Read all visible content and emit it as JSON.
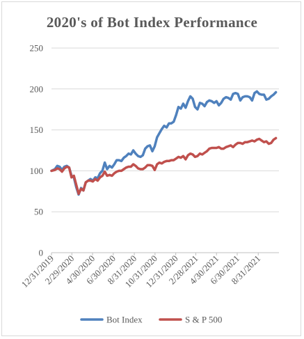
{
  "chart_data": {
    "type": "line",
    "title": "2020's of Bot Index Performance",
    "xlabel": "",
    "ylabel": "",
    "ylim": [
      0,
      250
    ],
    "y_ticks": [
      0,
      50,
      100,
      150,
      200,
      250
    ],
    "grid": true,
    "legend_position": "bottom",
    "x_tick_labels": [
      "12/31/2019",
      "2/29/2020",
      "4/30/2020",
      "6/30/2020",
      "8/31/2020",
      "10/31/2020",
      "12/31/2020",
      "2/28/2021",
      "4/30/2021",
      "6/30/2021",
      "8/31/2021"
    ],
    "x_tick_dates": [
      "2019-12-31",
      "2020-02-29",
      "2020-04-30",
      "2020-06-30",
      "2020-08-31",
      "2020-10-31",
      "2020-12-31",
      "2021-02-28",
      "2021-04-30",
      "2021-06-30",
      "2021-08-31"
    ],
    "x_range": [
      "2019-12-31",
      "2021-10-31"
    ],
    "series": [
      {
        "name": "Bot Index",
        "color": "#4f81bd",
        "points": [
          [
            "2019-12-31",
            100
          ],
          [
            "2020-01-10",
            102
          ],
          [
            "2020-01-17",
            106
          ],
          [
            "2020-01-24",
            105
          ],
          [
            "2020-01-31",
            101
          ],
          [
            "2020-02-07",
            105
          ],
          [
            "2020-02-14",
            106
          ],
          [
            "2020-02-21",
            104
          ],
          [
            "2020-02-28",
            94
          ],
          [
            "2020-03-06",
            92
          ],
          [
            "2020-03-13",
            80
          ],
          [
            "2020-03-20",
            71
          ],
          [
            "2020-03-27",
            79
          ],
          [
            "2020-04-03",
            76
          ],
          [
            "2020-04-10",
            86
          ],
          [
            "2020-04-17",
            88
          ],
          [
            "2020-04-24",
            90
          ],
          [
            "2020-05-01",
            88
          ],
          [
            "2020-05-08",
            92
          ],
          [
            "2020-05-15",
            91
          ],
          [
            "2020-05-22",
            97
          ],
          [
            "2020-05-29",
            100
          ],
          [
            "2020-06-05",
            110
          ],
          [
            "2020-06-12",
            102
          ],
          [
            "2020-06-19",
            106
          ],
          [
            "2020-06-26",
            104
          ],
          [
            "2020-07-03",
            108
          ],
          [
            "2020-07-10",
            113
          ],
          [
            "2020-07-17",
            113
          ],
          [
            "2020-07-24",
            112
          ],
          [
            "2020-07-31",
            116
          ],
          [
            "2020-08-07",
            118
          ],
          [
            "2020-08-14",
            121
          ],
          [
            "2020-08-21",
            120
          ],
          [
            "2020-08-28",
            125
          ],
          [
            "2020-09-04",
            121
          ],
          [
            "2020-09-11",
            118
          ],
          [
            "2020-09-18",
            117
          ],
          [
            "2020-09-25",
            119
          ],
          [
            "2020-10-02",
            127
          ],
          [
            "2020-10-09",
            130
          ],
          [
            "2020-10-16",
            131
          ],
          [
            "2020-10-23",
            124
          ],
          [
            "2020-10-30",
            130
          ],
          [
            "2020-11-06",
            141
          ],
          [
            "2020-11-13",
            146
          ],
          [
            "2020-11-20",
            151
          ],
          [
            "2020-11-27",
            155
          ],
          [
            "2020-12-04",
            153
          ],
          [
            "2020-12-11",
            158
          ],
          [
            "2020-12-18",
            158
          ],
          [
            "2020-12-25",
            160
          ],
          [
            "2021-01-01",
            168
          ],
          [
            "2021-01-08",
            178
          ],
          [
            "2021-01-15",
            176
          ],
          [
            "2021-01-22",
            182
          ],
          [
            "2021-01-29",
            177
          ],
          [
            "2021-02-05",
            185
          ],
          [
            "2021-02-12",
            191
          ],
          [
            "2021-02-19",
            188
          ],
          [
            "2021-02-26",
            178
          ],
          [
            "2021-03-05",
            175
          ],
          [
            "2021-03-12",
            183
          ],
          [
            "2021-03-19",
            182
          ],
          [
            "2021-03-26",
            179
          ],
          [
            "2021-04-02",
            184
          ],
          [
            "2021-04-09",
            186
          ],
          [
            "2021-04-16",
            185
          ],
          [
            "2021-04-23",
            183
          ],
          [
            "2021-04-30",
            185
          ],
          [
            "2021-05-07",
            180
          ],
          [
            "2021-05-14",
            183
          ],
          [
            "2021-05-21",
            188
          ],
          [
            "2021-05-28",
            190
          ],
          [
            "2021-06-04",
            189
          ],
          [
            "2021-06-11",
            187
          ],
          [
            "2021-06-18",
            194
          ],
          [
            "2021-06-25",
            195
          ],
          [
            "2021-07-02",
            194
          ],
          [
            "2021-07-09",
            186
          ],
          [
            "2021-07-16",
            190
          ],
          [
            "2021-07-23",
            191
          ],
          [
            "2021-07-30",
            191
          ],
          [
            "2021-08-06",
            190
          ],
          [
            "2021-08-13",
            186
          ],
          [
            "2021-08-20",
            195
          ],
          [
            "2021-08-27",
            197
          ],
          [
            "2021-09-03",
            194
          ],
          [
            "2021-09-10",
            193
          ],
          [
            "2021-09-17",
            193
          ],
          [
            "2021-09-24",
            187
          ],
          [
            "2021-10-01",
            188
          ],
          [
            "2021-10-08",
            191
          ],
          [
            "2021-10-15",
            193
          ],
          [
            "2021-10-22",
            196
          ]
        ]
      },
      {
        "name": "S & P 500",
        "color": "#c0504d",
        "points": [
          [
            "2019-12-31",
            100
          ],
          [
            "2020-01-10",
            101
          ],
          [
            "2020-01-17",
            103
          ],
          [
            "2020-01-24",
            102
          ],
          [
            "2020-01-31",
            99
          ],
          [
            "2020-02-07",
            103
          ],
          [
            "2020-02-14",
            105
          ],
          [
            "2020-02-21",
            104
          ],
          [
            "2020-02-28",
            92
          ],
          [
            "2020-03-06",
            94
          ],
          [
            "2020-03-13",
            83
          ],
          [
            "2020-03-20",
            72
          ],
          [
            "2020-03-27",
            78
          ],
          [
            "2020-04-03",
            76
          ],
          [
            "2020-04-10",
            86
          ],
          [
            "2020-04-17",
            88
          ],
          [
            "2020-04-24",
            88
          ],
          [
            "2020-05-01",
            87
          ],
          [
            "2020-05-08",
            90
          ],
          [
            "2020-05-15",
            88
          ],
          [
            "2020-05-22",
            92
          ],
          [
            "2020-05-29",
            94
          ],
          [
            "2020-06-05",
            99
          ],
          [
            "2020-06-12",
            94
          ],
          [
            "2020-06-19",
            95
          ],
          [
            "2020-06-26",
            94
          ],
          [
            "2020-07-03",
            97
          ],
          [
            "2020-07-10",
            99
          ],
          [
            "2020-07-17",
            100
          ],
          [
            "2020-07-24",
            100
          ],
          [
            "2020-07-31",
            102
          ],
          [
            "2020-08-07",
            104
          ],
          [
            "2020-08-14",
            105
          ],
          [
            "2020-08-21",
            105
          ],
          [
            "2020-08-28",
            108
          ],
          [
            "2020-09-04",
            106
          ],
          [
            "2020-09-11",
            103
          ],
          [
            "2020-09-18",
            102
          ],
          [
            "2020-09-25",
            102
          ],
          [
            "2020-10-02",
            104
          ],
          [
            "2020-10-09",
            107
          ],
          [
            "2020-10-16",
            107
          ],
          [
            "2020-10-23",
            106
          ],
          [
            "2020-10-30",
            101
          ],
          [
            "2020-11-06",
            108
          ],
          [
            "2020-11-13",
            110
          ],
          [
            "2020-11-20",
            109
          ],
          [
            "2020-11-27",
            111
          ],
          [
            "2020-12-04",
            112
          ],
          [
            "2020-12-11",
            112
          ],
          [
            "2020-12-18",
            113
          ],
          [
            "2020-12-25",
            113
          ],
          [
            "2021-01-01",
            115
          ],
          [
            "2021-01-08",
            117
          ],
          [
            "2021-01-15",
            116
          ],
          [
            "2021-01-22",
            118
          ],
          [
            "2021-01-29",
            114
          ],
          [
            "2021-02-05",
            119
          ],
          [
            "2021-02-12",
            121
          ],
          [
            "2021-02-19",
            120
          ],
          [
            "2021-02-26",
            117
          ],
          [
            "2021-03-05",
            118
          ],
          [
            "2021-03-12",
            121
          ],
          [
            "2021-03-19",
            120
          ],
          [
            "2021-03-26",
            122
          ],
          [
            "2021-04-02",
            124
          ],
          [
            "2021-04-09",
            127
          ],
          [
            "2021-04-16",
            128
          ],
          [
            "2021-04-23",
            128
          ],
          [
            "2021-04-30",
            128
          ],
          [
            "2021-05-07",
            129
          ],
          [
            "2021-05-14",
            127
          ],
          [
            "2021-05-21",
            127
          ],
          [
            "2021-05-28",
            129
          ],
          [
            "2021-06-04",
            130
          ],
          [
            "2021-06-11",
            131
          ],
          [
            "2021-06-18",
            129
          ],
          [
            "2021-06-25",
            132
          ],
          [
            "2021-07-02",
            134
          ],
          [
            "2021-07-09",
            134
          ],
          [
            "2021-07-16",
            133
          ],
          [
            "2021-07-23",
            135
          ],
          [
            "2021-07-30",
            135
          ],
          [
            "2021-08-06",
            136
          ],
          [
            "2021-08-13",
            137
          ],
          [
            "2021-08-20",
            136
          ],
          [
            "2021-08-27",
            138
          ],
          [
            "2021-09-03",
            139
          ],
          [
            "2021-09-10",
            137
          ],
          [
            "2021-09-17",
            135
          ],
          [
            "2021-09-24",
            136
          ],
          [
            "2021-10-01",
            133
          ],
          [
            "2021-10-08",
            134
          ],
          [
            "2021-10-15",
            138
          ],
          [
            "2021-10-22",
            140
          ]
        ]
      }
    ]
  }
}
